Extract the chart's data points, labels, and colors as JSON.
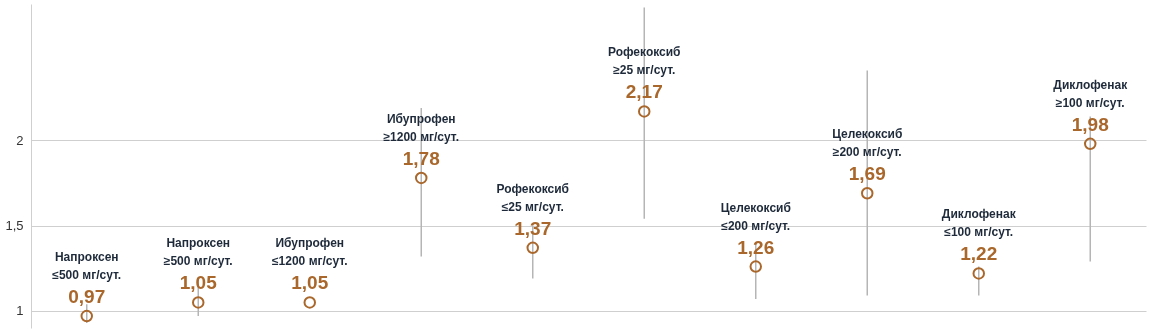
{
  "chart_data": {
    "type": "scatter",
    "categories": [
      "Напроксен\n≤500 мг/сут.",
      "Напроксен\n≥500 мг/сут.",
      "Ибупрофен\n≤1200 мг/сут.",
      "Ибупрофен\n≥1200 мг/сут.",
      "Рофекоксиб\n≤25 мг/сут.",
      "Рофекоксиб\n≥25 мг/сут.",
      "Целекоксиб\n≤200 мг/сут.",
      "Целекоксиб\n≥200 мг/сут.",
      "Диклофенак\n≤100 мг/сут.",
      "Диклофенак\n≥100 мг/сут."
    ],
    "series": [
      {
        "color": "#a9672b",
        "values": [
          0.97,
          1.05,
          1.05,
          1.78,
          1.37,
          2.17,
          1.26,
          1.69,
          1.22,
          1.98
        ],
        "errors": [
          [
            0.93,
            1.04
          ],
          [
            0.97,
            1.16
          ],
          null,
          [
            1.32,
            2.19
          ],
          [
            1.19,
            1.5
          ],
          [
            1.54,
            2.78
          ],
          [
            1.07,
            1.4
          ],
          [
            1.09,
            2.41
          ],
          [
            1.09,
            1.26
          ],
          [
            1.29,
            2.14
          ]
        ],
        "value_labels": [
          "0,97",
          "1,05",
          "1,05",
          "1,78",
          "1,37",
          "2,17",
          "1,26",
          "1,69",
          "1,22",
          "1,98"
        ]
      }
    ],
    "ylim": [
      0.9,
      2.8
    ],
    "yticks": [
      1,
      {
        "value": 1.5,
        "label": "1,5"
      },
      2
    ],
    "grid": "y",
    "marker": "circle",
    "tick_labels": "y",
    "legend": false
  }
}
